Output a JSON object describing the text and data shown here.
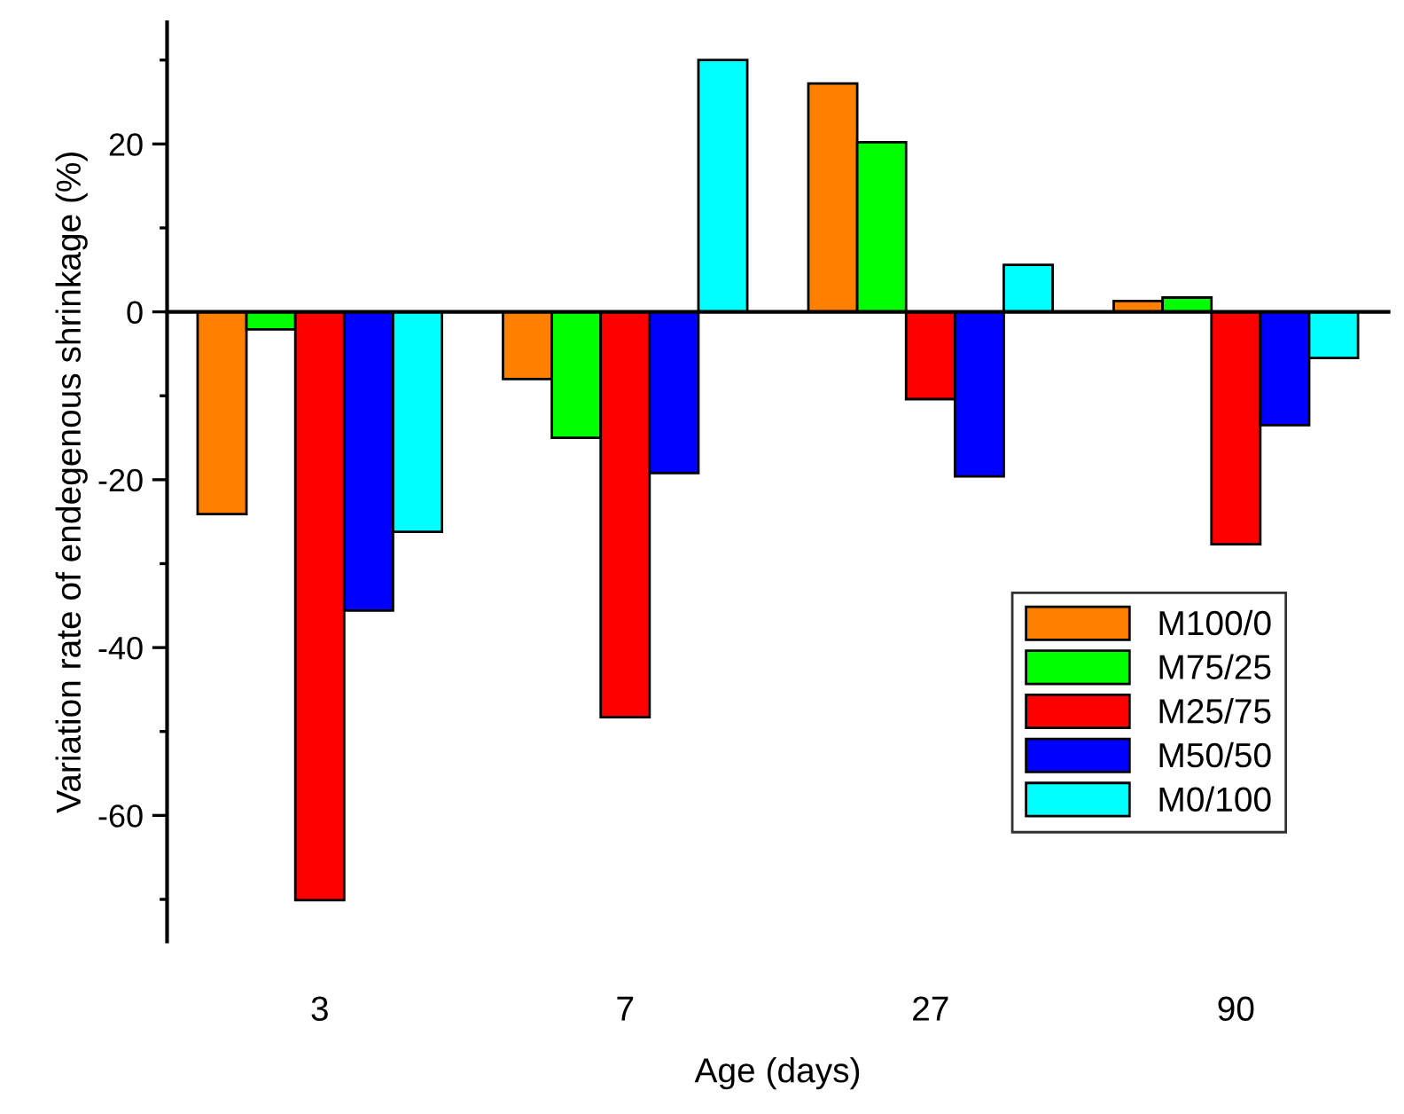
{
  "chart_data": {
    "type": "bar",
    "xlabel": "Age (days)",
    "ylabel": "Variation rate of endegenous shrinkage (%)",
    "categories": [
      "3",
      "7",
      "27",
      "90"
    ],
    "series": [
      {
        "name": "M100/0",
        "color": "#ff8000",
        "values": [
          -24.1,
          -8.0,
          27.2,
          1.3
        ]
      },
      {
        "name": "M75/25",
        "color": "#00ff00",
        "values": [
          -2.1,
          -15.0,
          20.2,
          1.7
        ]
      },
      {
        "name": "M25/75",
        "color": "#ff0000",
        "values": [
          -70.1,
          -48.3,
          -10.4,
          -27.7
        ]
      },
      {
        "name": "M50/50",
        "color": "#0000ff",
        "values": [
          -35.6,
          -19.2,
          -19.6,
          -13.5
        ]
      },
      {
        "name": "M0/100",
        "color": "#00ffff",
        "values": [
          -26.2,
          30.0,
          5.6,
          -5.5
        ]
      }
    ],
    "ylim": [
      -75,
      34.5
    ],
    "yticks": [
      -60,
      -40,
      -20,
      0,
      20
    ],
    "legend": "bottom right"
  }
}
